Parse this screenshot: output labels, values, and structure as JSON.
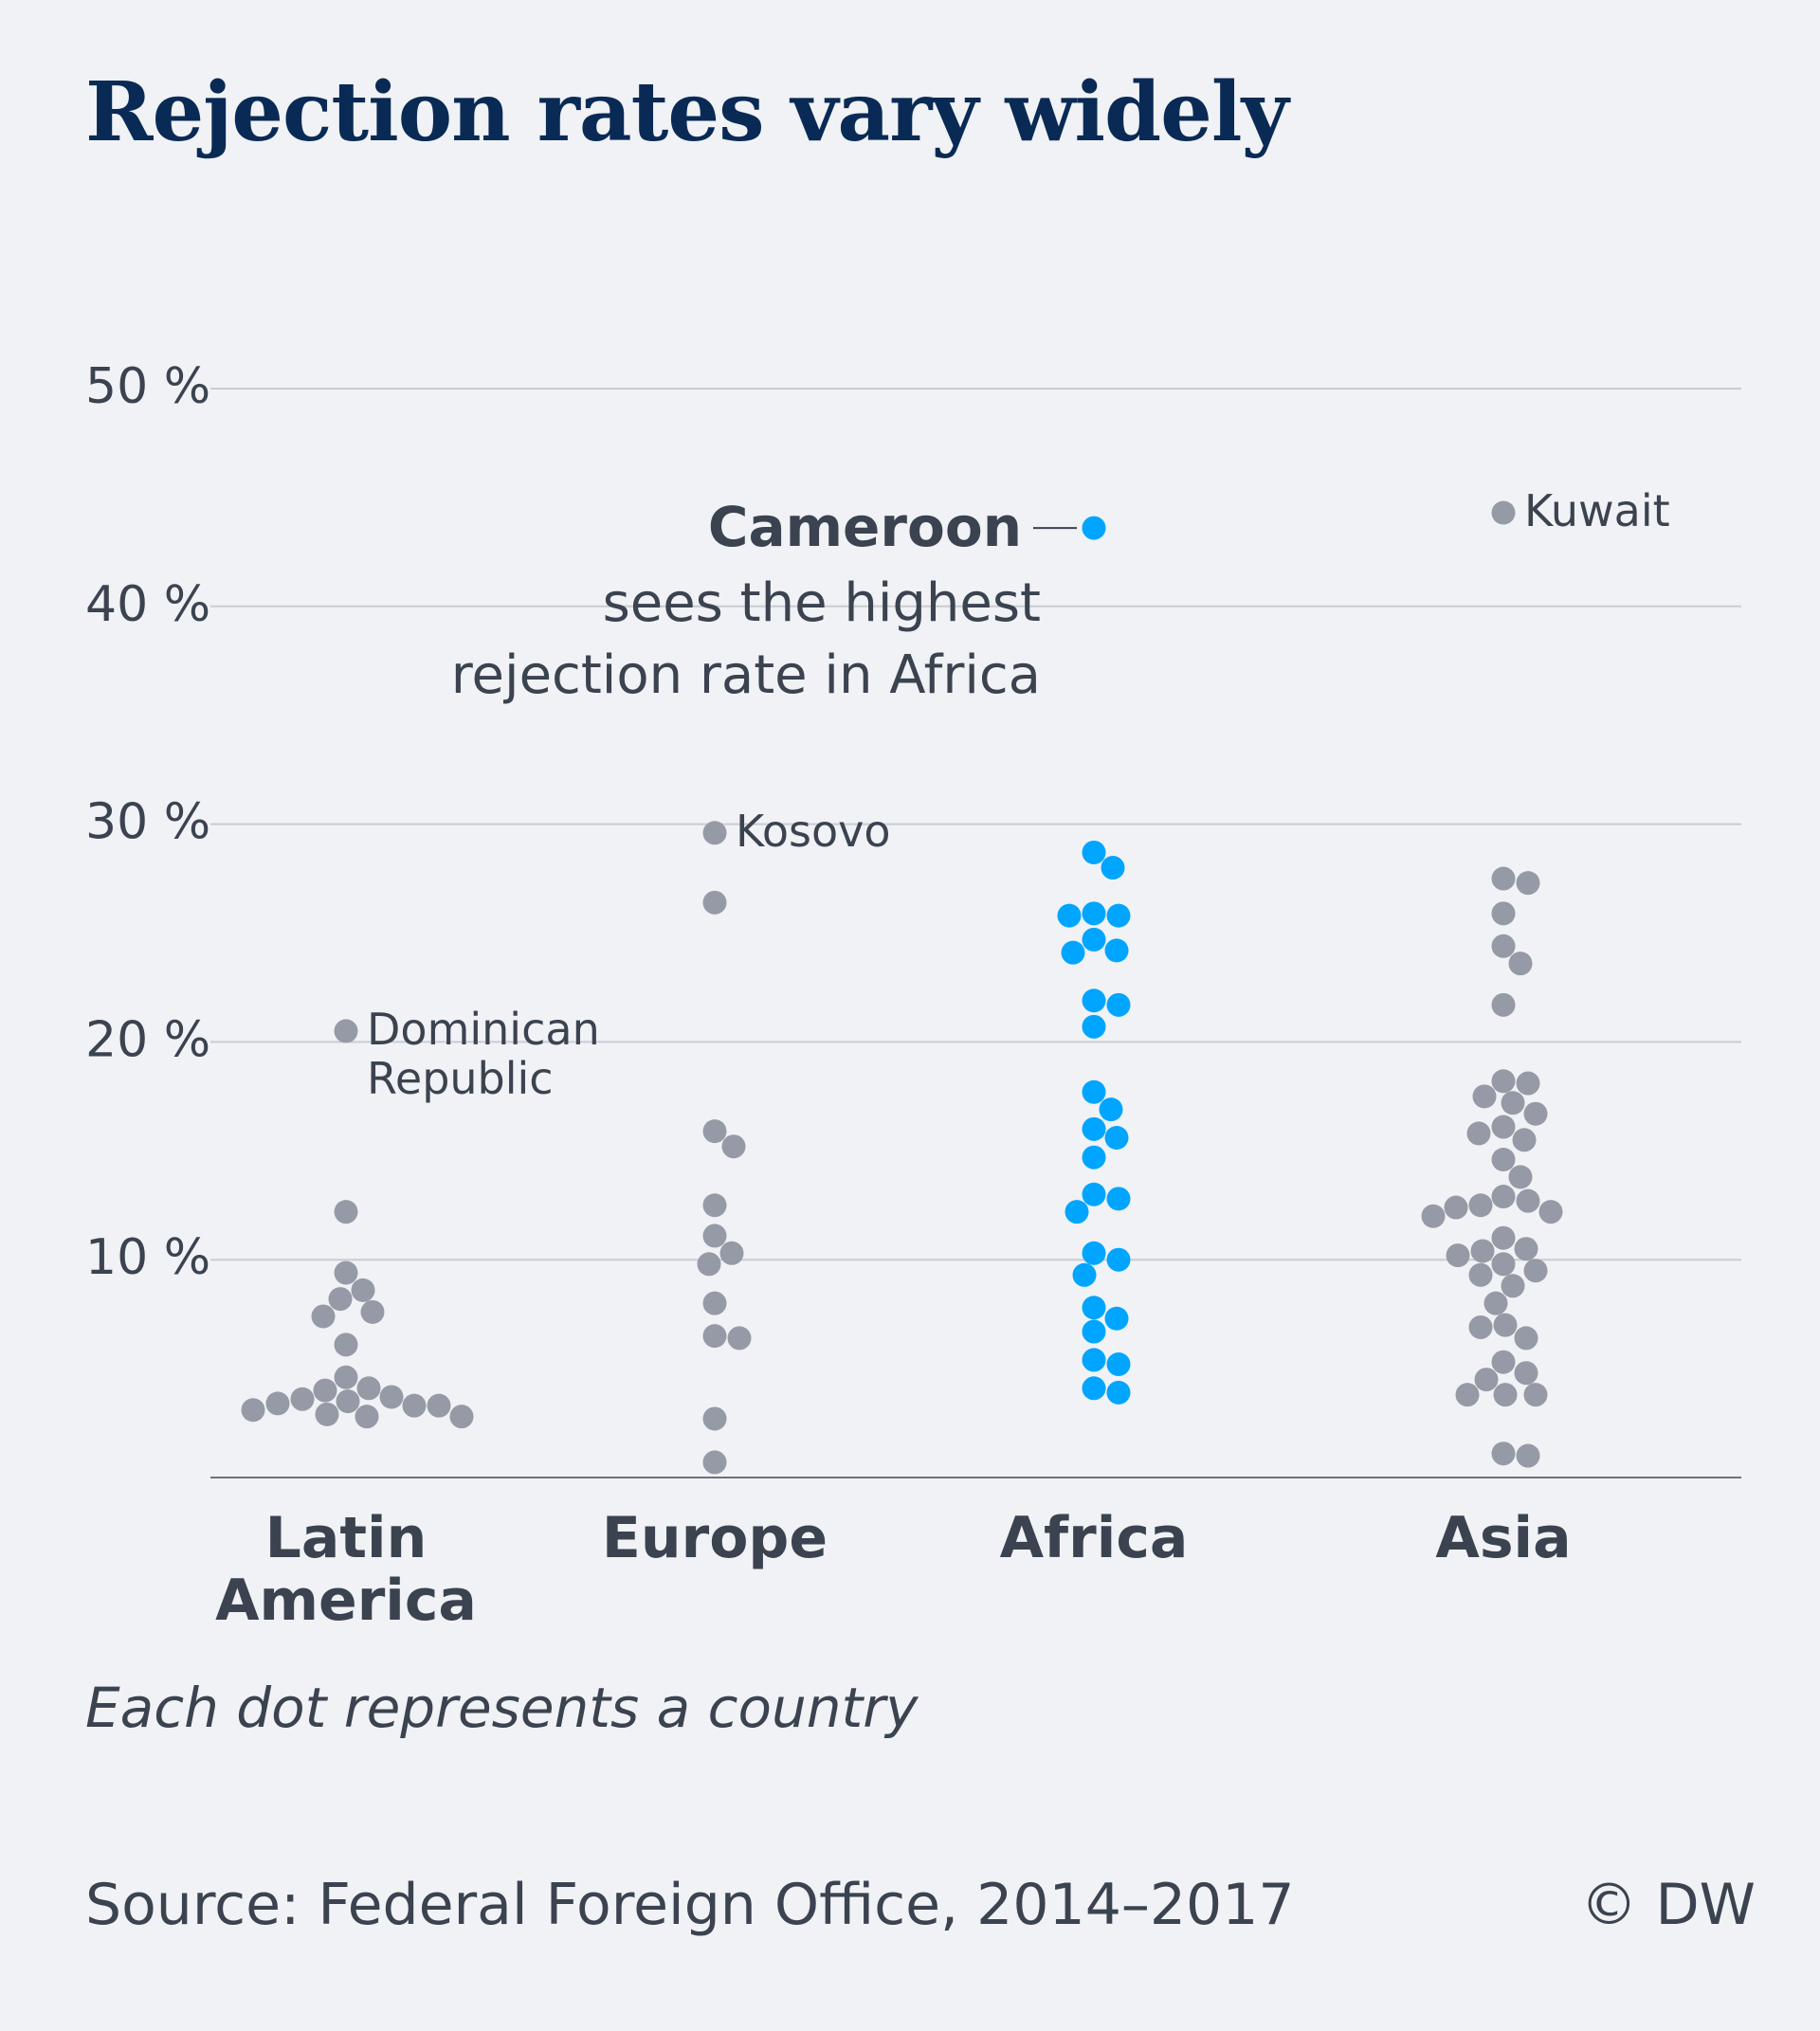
{
  "chart_data": {
    "type": "scatter",
    "title": "Rejection rates vary widely",
    "categories": [
      "Latin America",
      "Europe",
      "Africa",
      "Asia"
    ],
    "category_lines": [
      [
        "Latin",
        "America"
      ],
      [
        "Europe"
      ],
      [
        "Africa"
      ],
      [
        "Asia"
      ]
    ],
    "ylim": [
      0,
      50
    ],
    "yticks": [
      10,
      20,
      30,
      40,
      50
    ],
    "ytick_labels": [
      "10 %",
      "20 %",
      "30 %",
      "40 %",
      "50 %"
    ],
    "grid": true,
    "colors": {
      "default": "#959aa6",
      "highlight": "#00a5ff",
      "grid": "#c9ccd2",
      "axis": "#3b4350"
    },
    "highlight_category": "Africa",
    "series": [
      {
        "category": "Latin America",
        "values": [
          20.5,
          12.2,
          9.4,
          8.6,
          8.2,
          7.6,
          7.4,
          6.1,
          4.6,
          4.1,
          4.0,
          3.7,
          3.6,
          3.5,
          3.4,
          3.3,
          3.3,
          3.1,
          2.9,
          2.8,
          2.8
        ]
      },
      {
        "category": "Europe",
        "values": [
          29.6,
          26.4,
          15.9,
          15.2,
          12.5,
          11.1,
          10.3,
          9.8,
          8.0,
          6.5,
          6.4,
          2.7,
          0.7
        ]
      },
      {
        "category": "Africa",
        "values": [
          43.6,
          28.7,
          28.0,
          25.9,
          25.8,
          25.8,
          24.7,
          24.2,
          24.1,
          21.9,
          21.7,
          20.7,
          17.7,
          16.9,
          16.0,
          15.6,
          14.7,
          13.0,
          12.8,
          12.2,
          10.3,
          10.0,
          9.3,
          7.8,
          7.3,
          6.7,
          5.4,
          5.2,
          4.1,
          3.9
        ]
      },
      {
        "category": "Asia",
        "values": [
          44.3,
          27.5,
          27.3,
          25.9,
          24.4,
          23.6,
          21.7,
          18.2,
          18.1,
          17.5,
          17.2,
          16.7,
          16.1,
          15.8,
          15.5,
          14.6,
          13.8,
          12.9,
          12.7,
          12.5,
          12.4,
          12.2,
          12.0,
          11.0,
          10.5,
          10.4,
          10.2,
          9.8,
          9.5,
          9.3,
          8.8,
          8.0,
          7.0,
          6.9,
          6.4,
          5.3,
          4.8,
          4.5,
          3.8,
          3.8,
          3.8,
          1.1,
          1.0
        ]
      }
    ],
    "annotations": [
      {
        "category": "Latin America",
        "value": 20.5,
        "lines": [
          "Dominican",
          "Republic"
        ]
      },
      {
        "category": "Europe",
        "value": 29.6,
        "lines": [
          "Kosovo"
        ]
      },
      {
        "category": "Asia",
        "value": 44.3,
        "lines": [
          "Kuwait"
        ]
      }
    ],
    "callout": {
      "category": "Africa",
      "value": 43.6,
      "bold": "Cameroon",
      "lines": [
        "sees the highest",
        "rejection rate in Africa"
      ]
    }
  },
  "note": "Each dot represents a country",
  "source": "Source: Federal Foreign Office, 2014–2017",
  "copyright": "© DW"
}
